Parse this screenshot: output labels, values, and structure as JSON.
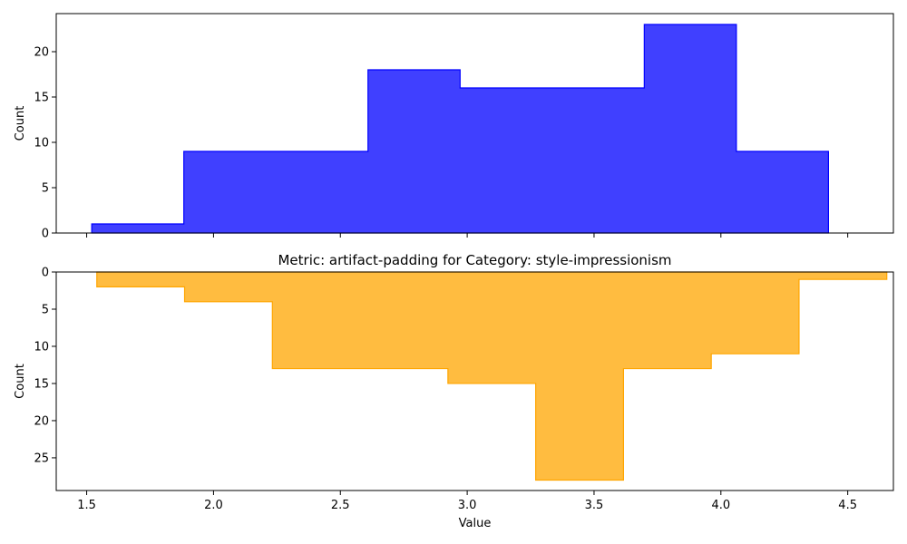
{
  "chart_data": [
    {
      "type": "area",
      "style": "step-histogram",
      "title": "",
      "xlabel": "",
      "ylabel": "Count",
      "xlim": [
        1.38,
        4.68
      ],
      "ylim": [
        0,
        24.2
      ],
      "y_inverted": false,
      "xticks": [
        1.5,
        2.0,
        2.5,
        3.0,
        3.5,
        4.0,
        4.5
      ],
      "xtick_labels_visible": false,
      "yticks": [
        0,
        5,
        10,
        15,
        20
      ],
      "ytick_labels": [
        "0",
        "5",
        "10",
        "15",
        "20"
      ],
      "bin_edges": [
        1.52,
        1.883,
        2.246,
        2.609,
        2.972,
        3.335,
        3.698,
        4.061,
        4.424
      ],
      "counts": [
        1,
        9,
        9,
        18,
        16,
        16,
        23,
        9
      ],
      "color": "#0000ff"
    },
    {
      "type": "area",
      "style": "step-histogram",
      "title": "Metric: artifact-padding for Category: style-impressionism",
      "xlabel": "Value",
      "ylabel": "Count",
      "xlim": [
        1.38,
        4.68
      ],
      "ylim": [
        29.4,
        0
      ],
      "y_inverted": true,
      "xticks": [
        1.5,
        2.0,
        2.5,
        3.0,
        3.5,
        4.0,
        4.5
      ],
      "xtick_labels": [
        "1.5",
        "2.0",
        "2.5",
        "3.0",
        "3.5",
        "4.0",
        "4.5"
      ],
      "xtick_labels_visible": true,
      "yticks": [
        0,
        5,
        10,
        15,
        20,
        25
      ],
      "ytick_labels": [
        "0",
        "5",
        "10",
        "15",
        "20",
        "25"
      ],
      "bin_edges": [
        1.54,
        1.886,
        2.232,
        2.578,
        2.924,
        3.27,
        3.616,
        3.962,
        4.308,
        4.654
      ],
      "counts": [
        2,
        4,
        13,
        13,
        15,
        28,
        13,
        11,
        1
      ],
      "color": "#ffa500"
    }
  ]
}
